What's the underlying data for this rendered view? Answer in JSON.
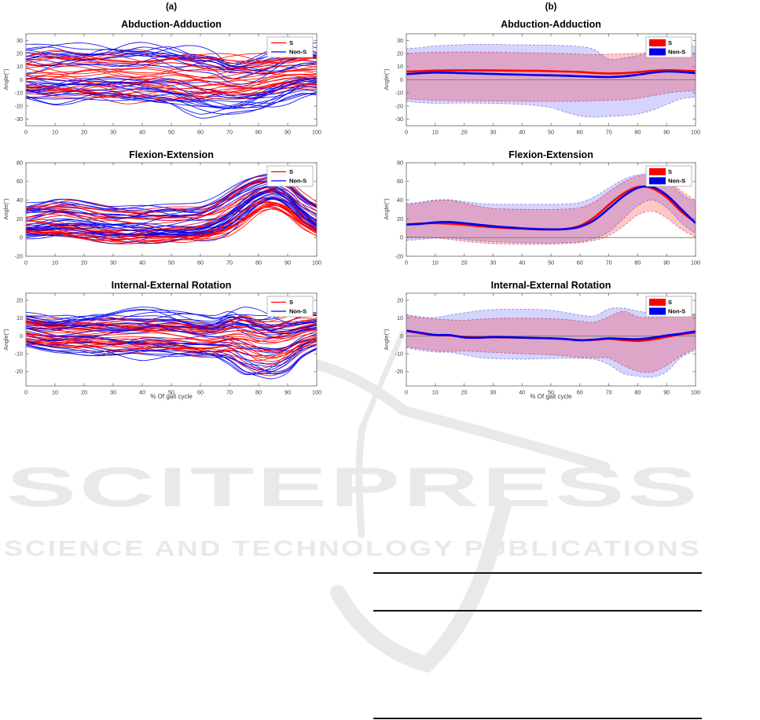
{
  "figure": {
    "panel_labels": [
      "(a)",
      "(b)"
    ],
    "x_axis_label": "% Of gait cycle",
    "y_axis_label": "Angle(°)",
    "legend": {
      "s_label": "S",
      "non_s_label": "Non-S"
    },
    "colors": {
      "s": "#ff0000",
      "non_s": "#0000ee",
      "s_fill": "rgba(255,0,0,0.22)",
      "non_s_fill": "rgba(0,0,255,0.17)",
      "s_band_edge": "rgba(170,30,60,0.6)",
      "non_s_band_edge": "rgba(70,70,160,0.6)",
      "zero_line": "#808080",
      "axes_box": "#808080",
      "tick": "#6e6e6e",
      "tick_label": "#3c3c3c"
    }
  },
  "chart_data": [
    {
      "row": 1,
      "title": "Abduction-Adduction",
      "type": "line",
      "panel_a_style": "individual-trials",
      "panel_b_style": "mean-with-band",
      "n_trials_shown": 30,
      "xlim": [
        0,
        100
      ],
      "xticks": [
        0,
        10,
        20,
        30,
        40,
        50,
        60,
        70,
        80,
        90,
        100
      ],
      "ylim": [
        -35,
        35
      ],
      "yticks": [
        -30,
        -20,
        -10,
        0,
        10,
        20,
        30
      ],
      "x": [
        0,
        5,
        10,
        15,
        20,
        25,
        30,
        35,
        40,
        45,
        50,
        55,
        60,
        65,
        70,
        75,
        80,
        85,
        90,
        95,
        100
      ],
      "series": [
        {
          "name": "S",
          "mean": [
            6.2,
            6.6,
            7.0,
            7.1,
            7.1,
            7.1,
            7.1,
            7.0,
            6.9,
            6.8,
            6.6,
            6.3,
            6.0,
            5.2,
            4.8,
            5.0,
            5.8,
            6.8,
            7.3,
            7.0,
            6.5
          ],
          "band_upper": [
            20.2,
            20.6,
            21.0,
            21.1,
            21.1,
            21.1,
            21.0,
            20.8,
            20.6,
            20.4,
            20.2,
            20.0,
            19.6,
            19.2,
            19.5,
            19.8,
            20.1,
            20.4,
            20.5,
            20.4,
            20.2
          ],
          "band_lower": [
            -14.5,
            -15.2,
            -15.6,
            -15.9,
            -16.0,
            -16.1,
            -16.2,
            -16.3,
            -16.4,
            -16.5,
            -16.5,
            -16.5,
            -16.3,
            -16.0,
            -15.7,
            -15.3,
            -14.2,
            -12.2,
            -10.2,
            -8.9,
            -8.7
          ]
        },
        {
          "name": "Non-S",
          "mean": [
            4.3,
            5.0,
            5.5,
            5.3,
            5.0,
            4.7,
            4.4,
            4.1,
            3.9,
            3.6,
            3.4,
            3.1,
            2.7,
            2.3,
            2.1,
            2.6,
            3.8,
            5.4,
            6.3,
            5.9,
            5.1
          ],
          "band_upper": [
            23.6,
            24.5,
            25.8,
            26.3,
            26.8,
            27.0,
            26.9,
            26.7,
            26.6,
            26.5,
            26.4,
            26.0,
            25.3,
            23.0,
            15.8,
            16.5,
            18.5,
            21.5,
            24.5,
            26.3,
            25.4
          ],
          "band_lower": [
            -16.5,
            -17.4,
            -17.9,
            -17.8,
            -17.7,
            -17.8,
            -18.0,
            -18.3,
            -18.7,
            -19.6,
            -21.2,
            -24.6,
            -27.6,
            -28.4,
            -27.9,
            -27.3,
            -26.1,
            -23.2,
            -18.8,
            -14.6,
            -13.1
          ]
        }
      ]
    },
    {
      "row": 2,
      "title": "Flexion-Extension",
      "type": "line",
      "panel_a_style": "individual-trials",
      "panel_b_style": "mean-with-band",
      "n_trials_shown": 30,
      "xlim": [
        0,
        100
      ],
      "xticks": [
        0,
        10,
        20,
        30,
        40,
        50,
        60,
        70,
        80,
        90,
        100
      ],
      "ylim": [
        -20,
        80
      ],
      "yticks": [
        -20,
        0,
        20,
        40,
        60,
        80
      ],
      "x": [
        0,
        5,
        10,
        15,
        20,
        25,
        30,
        35,
        40,
        45,
        50,
        55,
        60,
        65,
        70,
        75,
        80,
        85,
        90,
        95,
        100
      ],
      "series": [
        {
          "name": "S",
          "mean": [
            14.0,
            15.0,
            15.4,
            14.8,
            13.6,
            12.3,
            11.0,
            10.1,
            9.4,
            8.8,
            8.6,
            9.2,
            12.5,
            21.5,
            35.0,
            47.0,
            54.0,
            52.5,
            43.0,
            28.0,
            16.0
          ],
          "band_upper": [
            35.0,
            37.0,
            39.5,
            40.0,
            37.0,
            33.5,
            31.0,
            30.5,
            30.2,
            30.0,
            30.0,
            30.5,
            32.0,
            38.0,
            49.0,
            59.0,
            65.5,
            67.0,
            62.5,
            50.0,
            39.5
          ],
          "band_lower": [
            0.5,
            0.5,
            -0.5,
            -2.0,
            -4.0,
            -5.5,
            -6.5,
            -7.0,
            -7.2,
            -7.2,
            -7.0,
            -6.5,
            -5.5,
            -3.0,
            2.0,
            12.0,
            24.0,
            28.0,
            21.0,
            9.0,
            0.5
          ]
        },
        {
          "name": "Non-S",
          "mean": [
            13.8,
            14.6,
            16.2,
            16.6,
            15.3,
            13.7,
            12.1,
            10.9,
            9.9,
            9.1,
            8.7,
            9.0,
            11.5,
            18.5,
            31.0,
            44.0,
            53.0,
            54.0,
            45.5,
            30.5,
            15.5
          ],
          "band_upper": [
            36.5,
            38.0,
            40.2,
            40.3,
            38.5,
            36.5,
            35.6,
            35.5,
            35.5,
            35.5,
            35.5,
            36.0,
            37.5,
            43.5,
            53.0,
            62.0,
            67.0,
            68.0,
            61.5,
            47.0,
            37.0
          ],
          "band_lower": [
            -3.0,
            -2.0,
            -0.5,
            -0.5,
            -2.0,
            -3.5,
            -4.5,
            -5.0,
            -5.5,
            -5.8,
            -6.0,
            -5.5,
            -4.5,
            -1.0,
            6.0,
            20.0,
            34.0,
            40.0,
            32.0,
            16.0,
            4.0
          ]
        }
      ]
    },
    {
      "row": 3,
      "title": "Internal-External Rotation",
      "type": "line",
      "panel_a_style": "individual-trials",
      "panel_b_style": "mean-with-band",
      "n_trials_shown": 30,
      "xlim": [
        0,
        100
      ],
      "xticks": [
        0,
        10,
        20,
        30,
        40,
        50,
        60,
        70,
        80,
        90,
        100
      ],
      "ylim": [
        -28,
        24
      ],
      "yticks": [
        -20,
        -10,
        0,
        10,
        20
      ],
      "x": [
        0,
        5,
        10,
        15,
        20,
        25,
        30,
        35,
        40,
        45,
        50,
        55,
        60,
        65,
        70,
        75,
        80,
        85,
        90,
        95,
        100
      ],
      "series": [
        {
          "name": "S",
          "mean": [
            2.8,
            1.5,
            0.5,
            0.3,
            -0.5,
            -0.8,
            -0.7,
            -0.8,
            -1.0,
            -1.2,
            -1.3,
            -1.8,
            -2.3,
            -2.2,
            -1.6,
            -2.3,
            -2.8,
            -2.0,
            -0.5,
            0.9,
            1.9
          ],
          "band_upper": [
            11.5,
            10.2,
            9.6,
            9.0,
            8.8,
            9.4,
            9.8,
            10.0,
            10.0,
            9.9,
            9.7,
            9.3,
            8.4,
            7.8,
            10.8,
            13.8,
            10.8,
            10.2,
            10.8,
            12.2,
            12.0
          ],
          "band_lower": [
            -6.0,
            -7.2,
            -8.2,
            -8.6,
            -8.4,
            -8.8,
            -9.2,
            -9.6,
            -10.0,
            -10.2,
            -10.6,
            -11.2,
            -12.0,
            -12.2,
            -12.4,
            -16.5,
            -19.8,
            -20.2,
            -16.5,
            -11.0,
            -7.0
          ]
        },
        {
          "name": "Non-S",
          "mean": [
            3.0,
            1.8,
            0.6,
            0.5,
            -0.8,
            -1.0,
            -0.6,
            -0.7,
            -0.9,
            -1.1,
            -1.3,
            -1.7,
            -2.4,
            -2.0,
            -1.3,
            -1.6,
            -1.8,
            -1.0,
            0.3,
            1.3,
            2.6
          ],
          "band_upper": [
            12.0,
            10.8,
            10.4,
            11.8,
            13.0,
            14.2,
            14.8,
            15.0,
            15.0,
            14.9,
            14.4,
            13.2,
            11.8,
            11.2,
            15.2,
            15.6,
            14.0,
            12.6,
            12.4,
            11.8,
            12.4
          ],
          "band_lower": [
            -6.5,
            -8.0,
            -9.0,
            -9.2,
            -10.5,
            -12.0,
            -12.6,
            -12.8,
            -13.0,
            -12.8,
            -12.6,
            -12.4,
            -12.6,
            -13.0,
            -16.0,
            -21.0,
            -22.5,
            -23.0,
            -20.0,
            -12.0,
            -8.0
          ]
        }
      ]
    }
  ],
  "watermark": {
    "title": "SCITEPRESS",
    "subtitle": "SCIENCE AND TECHNOLOGY PUBLICATIONS"
  }
}
